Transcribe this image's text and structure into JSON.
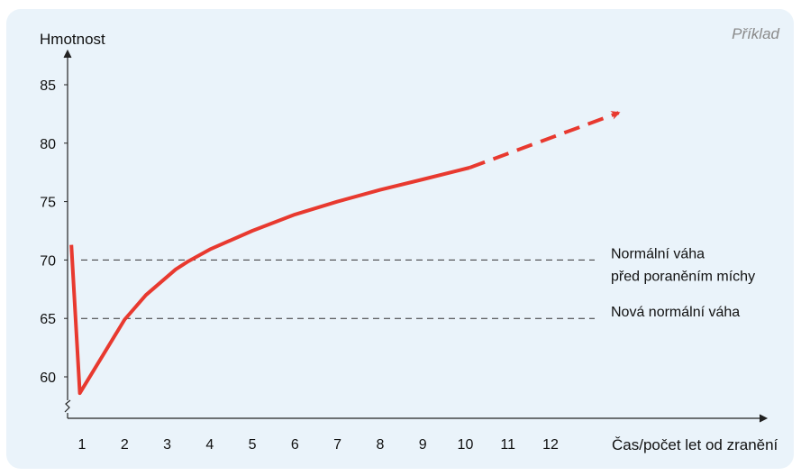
{
  "example_label": "Příklad",
  "chart_data": {
    "type": "line",
    "ylabel": "Hmotnost",
    "xlabel": "Čas/počet let od zranění",
    "x_ticks": [
      "1",
      "2",
      "3",
      "4",
      "5",
      "6",
      "7",
      "8",
      "9",
      "10",
      "11",
      "12"
    ],
    "y_ticks": [
      60,
      65,
      70,
      75,
      80,
      85
    ],
    "ylim": [
      57,
      88
    ],
    "xlim": [
      0.7,
      13.6
    ],
    "series": [
      {
        "style": "solid",
        "color": "#e8392f",
        "x": [
          0.75,
          0.95,
          1.5,
          2.0,
          2.5,
          3.2,
          3.5,
          4.0,
          5.0,
          6.0,
          7.0,
          8.0,
          9.0,
          10.1
        ],
        "y": [
          71.3,
          58.6,
          61.9,
          64.9,
          67.0,
          69.2,
          69.9,
          70.9,
          72.5,
          73.9,
          75.0,
          76.0,
          76.9,
          77.9
        ]
      },
      {
        "style": "dashed-arrow",
        "color": "#e8392f",
        "x": [
          10.1,
          13.6
        ],
        "y": [
          77.9,
          82.6
        ]
      }
    ],
    "reference_lines": [
      {
        "y": 70,
        "label": [
          "Normální váha",
          "před poraněním míchy"
        ]
      },
      {
        "y": 65,
        "label": [
          "Nová normální váha"
        ]
      }
    ],
    "grid": false
  }
}
